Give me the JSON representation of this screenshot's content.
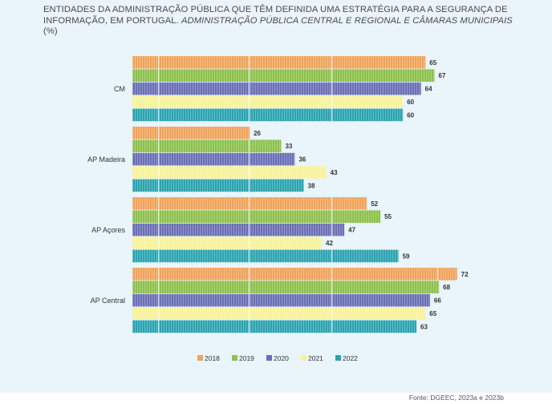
{
  "title": {
    "main": "ENTIDADES DA ADMINISTRAÇÃO PÚBLICA QUE TÊM DEFINIDA UMA ESTRATÉGIA PARA A SEGURANÇA DE INFORMAÇÃO, EM PORTUGAL.",
    "italic": "ADMINISTRAÇÃO PÚBLICA CENTRAL E REGIONAL E CÂMARAS MUNICIPAIS",
    "unit": "(%)"
  },
  "source": "Fonte: DGEEC, 2023a e 2023b",
  "chart_data": {
    "type": "bar",
    "orientation": "horizontal",
    "categories": [
      "CM",
      "AP Madeira",
      "AP Açores",
      "AP Central"
    ],
    "series": [
      {
        "name": "2018",
        "color": "#f0a35a",
        "values": [
          65,
          26,
          52,
          72
        ]
      },
      {
        "name": "2019",
        "color": "#8cc14c",
        "values": [
          67,
          33,
          55,
          68
        ]
      },
      {
        "name": "2020",
        "color": "#6b6fb5",
        "values": [
          64,
          36,
          47,
          66
        ]
      },
      {
        "name": "2021",
        "color": "#f7f29a",
        "values": [
          60,
          43,
          42,
          65
        ]
      },
      {
        "name": "2022",
        "color": "#2aa4b0",
        "values": [
          60,
          38,
          59,
          63
        ]
      }
    ],
    "xlim": [
      0,
      100
    ],
    "legend_position": "bottom",
    "data_labels": true
  }
}
